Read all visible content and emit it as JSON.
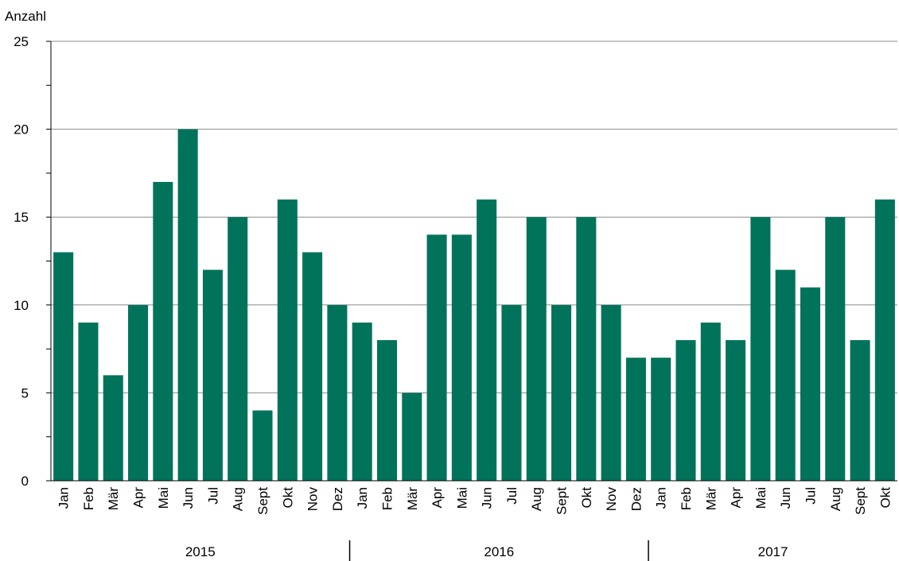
{
  "chart_data": {
    "type": "bar",
    "ylabel": "Anzahl",
    "ylim": [
      0,
      25
    ],
    "y_ticks": [
      0,
      5,
      10,
      15,
      20,
      25
    ],
    "grid": "horizontal",
    "bar_color": "#00735a",
    "categories": [
      "Jan",
      "Feb",
      "Mär",
      "Apr",
      "Mai",
      "Jun",
      "Jul",
      "Aug",
      "Sept",
      "Okt",
      "Nov",
      "Dez",
      "Jan",
      "Feb",
      "Mär",
      "Apr",
      "Mai",
      "Jun",
      "Jul",
      "Aug",
      "Sept",
      "Okt",
      "Nov",
      "Dez",
      "Jan",
      "Feb",
      "Mär",
      "Apr",
      "Mai",
      "Jun",
      "Jul",
      "Aug",
      "Sept",
      "Okt"
    ],
    "values": [
      13,
      9,
      6,
      10,
      17,
      20,
      12,
      15,
      4,
      16,
      13,
      10,
      9,
      8,
      5,
      14,
      14,
      16,
      10,
      15,
      10,
      15,
      10,
      7,
      7,
      8,
      9,
      8,
      15,
      12,
      11,
      15,
      8,
      16
    ],
    "groups": [
      {
        "label": "2015",
        "count": 12
      },
      {
        "label": "2016",
        "count": 12
      },
      {
        "label": "2017",
        "count": 10
      }
    ]
  }
}
